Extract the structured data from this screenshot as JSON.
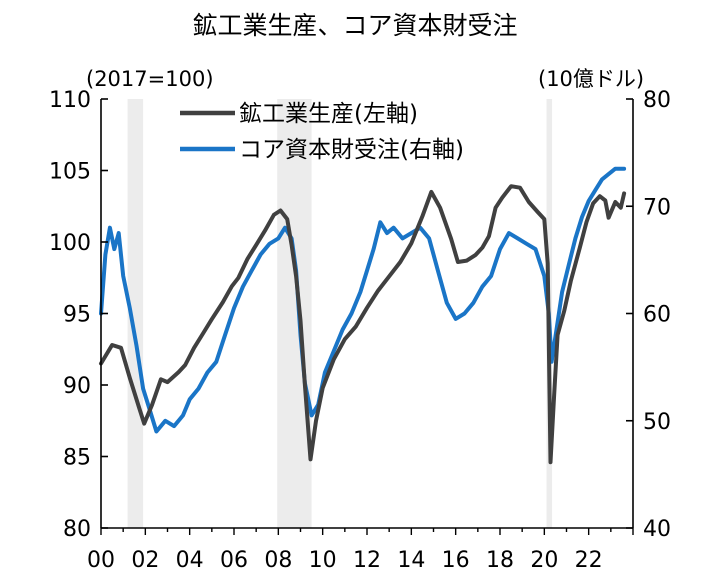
{
  "title": "鉱工業生産、コア資本財受注",
  "chart_data": {
    "type": "line",
    "left_unit": "(2017=100)",
    "right_unit": "(10億ドル)",
    "left_axis": {
      "range": [
        80,
        110
      ],
      "ticks": [
        "80",
        "85",
        "90",
        "95",
        "100",
        "105",
        "110"
      ]
    },
    "right_axis": {
      "range": [
        40,
        80
      ],
      "ticks": [
        "40",
        "50",
        "60",
        "70",
        "80"
      ]
    },
    "x_axis": {
      "range": [
        2000,
        2024
      ],
      "ticks": [
        "00",
        "02",
        "04",
        "06",
        "08",
        "10",
        "12",
        "14",
        "16",
        "18",
        "20",
        "22"
      ]
    },
    "legend_placement": "top-center",
    "recessions": [
      [
        2001.2,
        2001.9
      ],
      [
        2007.95,
        2009.5
      ],
      [
        2020.1,
        2020.35
      ]
    ],
    "series": [
      {
        "name": "鉱工業生産(左軸)",
        "axis": "left",
        "color": "#404040",
        "points": [
          [
            2000.0,
            91.5
          ],
          [
            2000.5,
            92.8
          ],
          [
            2000.9,
            92.6
          ],
          [
            2001.3,
            90.5
          ],
          [
            2001.7,
            88.5
          ],
          [
            2001.95,
            87.3
          ],
          [
            2002.3,
            88.6
          ],
          [
            2002.7,
            90.4
          ],
          [
            2003.0,
            90.2
          ],
          [
            2003.5,
            90.9
          ],
          [
            2003.8,
            91.4
          ],
          [
            2004.2,
            92.6
          ],
          [
            2004.6,
            93.6
          ],
          [
            2005.0,
            94.6
          ],
          [
            2005.5,
            95.8
          ],
          [
            2005.9,
            96.9
          ],
          [
            2006.2,
            97.5
          ],
          [
            2006.6,
            98.8
          ],
          [
            2007.0,
            99.8
          ],
          [
            2007.4,
            100.8
          ],
          [
            2007.8,
            101.9
          ],
          [
            2008.1,
            102.2
          ],
          [
            2008.4,
            101.6
          ],
          [
            2008.6,
            99.8
          ],
          [
            2008.8,
            97.6
          ],
          [
            2009.0,
            94.5
          ],
          [
            2009.2,
            90.0
          ],
          [
            2009.45,
            84.8
          ],
          [
            2009.7,
            87.5
          ],
          [
            2010.0,
            89.8
          ],
          [
            2010.5,
            91.8
          ],
          [
            2011.0,
            93.2
          ],
          [
            2011.5,
            94.1
          ],
          [
            2012.0,
            95.4
          ],
          [
            2012.5,
            96.6
          ],
          [
            2013.0,
            97.6
          ],
          [
            2013.5,
            98.6
          ],
          [
            2014.0,
            99.9
          ],
          [
            2014.5,
            101.8
          ],
          [
            2014.9,
            103.5
          ],
          [
            2015.3,
            102.4
          ],
          [
            2015.8,
            100.2
          ],
          [
            2016.1,
            98.6
          ],
          [
            2016.5,
            98.7
          ],
          [
            2016.9,
            99.1
          ],
          [
            2017.2,
            99.6
          ],
          [
            2017.5,
            100.4
          ],
          [
            2017.8,
            102.4
          ],
          [
            2018.1,
            103.1
          ],
          [
            2018.5,
            103.9
          ],
          [
            2018.9,
            103.8
          ],
          [
            2019.3,
            102.8
          ],
          [
            2019.7,
            102.1
          ],
          [
            2020.0,
            101.6
          ],
          [
            2020.15,
            98.5
          ],
          [
            2020.28,
            84.6
          ],
          [
            2020.45,
            89.5
          ],
          [
            2020.6,
            93.5
          ],
          [
            2020.9,
            95.2
          ],
          [
            2021.2,
            97.3
          ],
          [
            2021.6,
            99.6
          ],
          [
            2021.9,
            101.4
          ],
          [
            2022.2,
            102.7
          ],
          [
            2022.5,
            103.2
          ],
          [
            2022.75,
            102.9
          ],
          [
            2022.9,
            101.7
          ],
          [
            2023.2,
            102.8
          ],
          [
            2023.45,
            102.4
          ],
          [
            2023.6,
            103.4
          ]
        ]
      },
      {
        "name": "コア資本財受注(右軸)",
        "axis": "right",
        "color": "#1a75c7",
        "points": [
          [
            2000.0,
            60.0
          ],
          [
            2000.2,
            65.5
          ],
          [
            2000.4,
            68.0
          ],
          [
            2000.6,
            66.0
          ],
          [
            2000.8,
            67.5
          ],
          [
            2001.0,
            63.5
          ],
          [
            2001.3,
            60.5
          ],
          [
            2001.6,
            57.0
          ],
          [
            2001.9,
            53.0
          ],
          [
            2002.2,
            51.0
          ],
          [
            2002.5,
            49.0
          ],
          [
            2002.9,
            50.0
          ],
          [
            2003.3,
            49.5
          ],
          [
            2003.7,
            50.5
          ],
          [
            2004.0,
            52.0
          ],
          [
            2004.4,
            53.0
          ],
          [
            2004.8,
            54.5
          ],
          [
            2005.2,
            55.5
          ],
          [
            2005.6,
            58.0
          ],
          [
            2006.0,
            60.5
          ],
          [
            2006.4,
            62.5
          ],
          [
            2006.8,
            64.0
          ],
          [
            2007.2,
            65.5
          ],
          [
            2007.6,
            66.5
          ],
          [
            2008.0,
            67.0
          ],
          [
            2008.3,
            68.0
          ],
          [
            2008.6,
            67.0
          ],
          [
            2008.8,
            64.0
          ],
          [
            2009.0,
            58.0
          ],
          [
            2009.2,
            53.5
          ],
          [
            2009.5,
            50.5
          ],
          [
            2009.8,
            51.5
          ],
          [
            2010.1,
            54.5
          ],
          [
            2010.5,
            56.5
          ],
          [
            2010.9,
            58.5
          ],
          [
            2011.3,
            60.0
          ],
          [
            2011.7,
            62.0
          ],
          [
            2012.0,
            64.0
          ],
          [
            2012.3,
            66.0
          ],
          [
            2012.6,
            68.5
          ],
          [
            2012.9,
            67.5
          ],
          [
            2013.2,
            68.0
          ],
          [
            2013.6,
            67.0
          ],
          [
            2014.0,
            67.5
          ],
          [
            2014.4,
            68.0
          ],
          [
            2014.8,
            67.0
          ],
          [
            2015.2,
            64.0
          ],
          [
            2015.6,
            61.0
          ],
          [
            2016.0,
            59.5
          ],
          [
            2016.4,
            60.0
          ],
          [
            2016.8,
            61.0
          ],
          [
            2017.2,
            62.5
          ],
          [
            2017.6,
            63.5
          ],
          [
            2018.0,
            66.0
          ],
          [
            2018.4,
            67.5
          ],
          [
            2018.8,
            67.0
          ],
          [
            2019.2,
            66.5
          ],
          [
            2019.6,
            66.0
          ],
          [
            2020.0,
            63.5
          ],
          [
            2020.2,
            60.0
          ],
          [
            2020.33,
            55.5
          ],
          [
            2020.55,
            58.5
          ],
          [
            2020.8,
            62.0
          ],
          [
            2021.1,
            64.5
          ],
          [
            2021.4,
            67.0
          ],
          [
            2021.7,
            69.0
          ],
          [
            2022.0,
            70.5
          ],
          [
            2022.3,
            71.5
          ],
          [
            2022.6,
            72.5
          ],
          [
            2022.9,
            73.0
          ],
          [
            2023.2,
            73.5
          ],
          [
            2023.6,
            73.5
          ]
        ]
      }
    ]
  }
}
